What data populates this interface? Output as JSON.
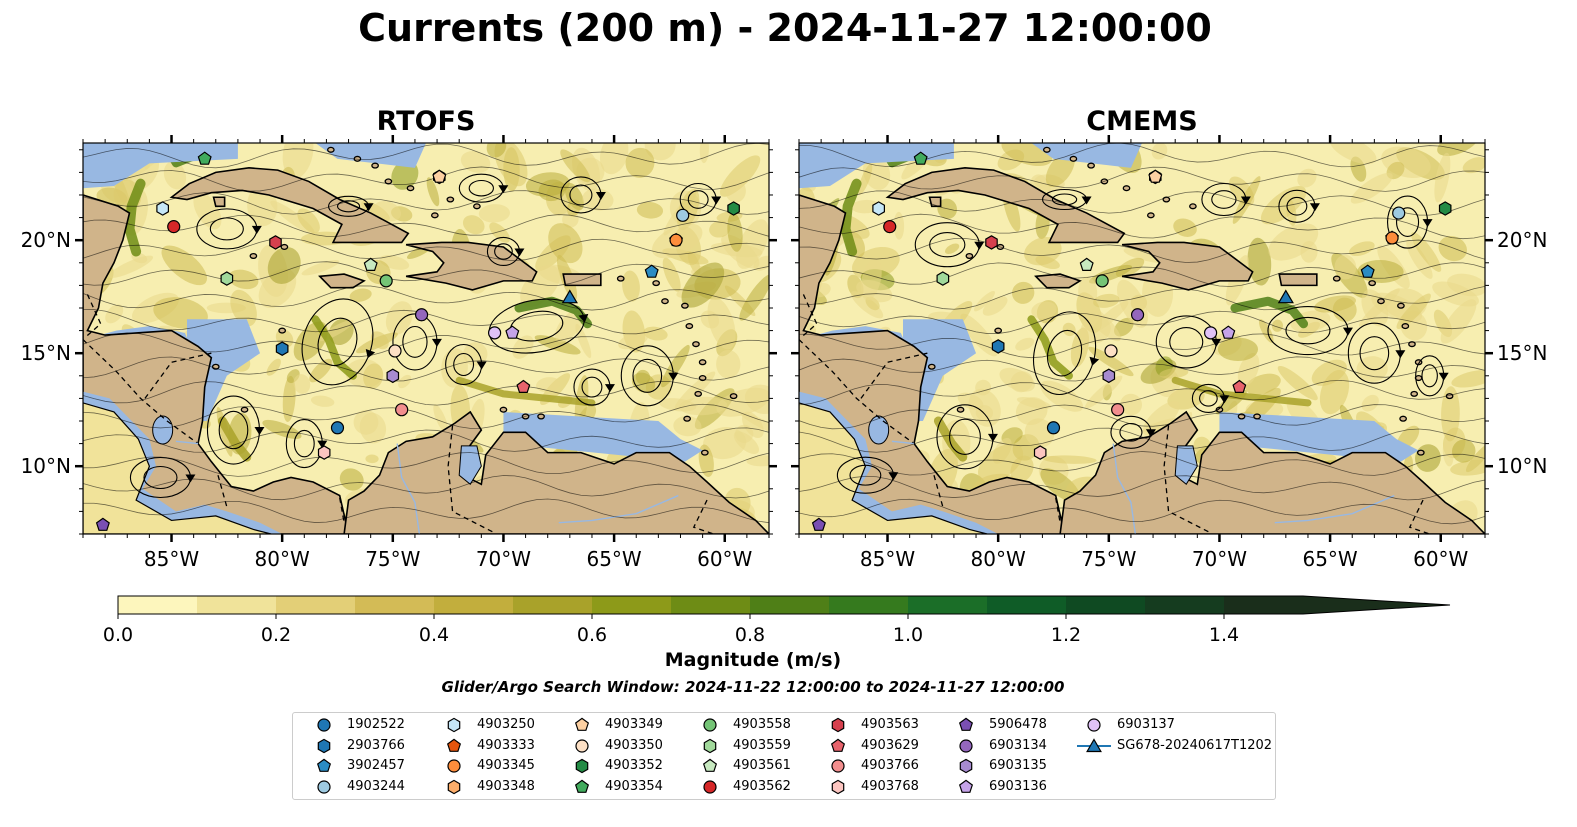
{
  "title": "Currents (200 m) - 2024-11-27 12:00:00",
  "chart_data": {
    "type": "heatmap",
    "panels": [
      {
        "name": "RTOFS"
      },
      {
        "name": "CMEMS"
      }
    ],
    "x_ticks": [
      "85°W",
      "80°W",
      "75°W",
      "70°W",
      "65°W",
      "60°W"
    ],
    "x_values": [
      -85,
      -80,
      -75,
      -70,
      -65,
      -60
    ],
    "y_ticks": [
      "20°N",
      "15°N",
      "10°N"
    ],
    "y_values": [
      20,
      15,
      10
    ],
    "xlim": [
      -89,
      -58
    ],
    "ylim": [
      7,
      24.3
    ],
    "colorbar": {
      "label": "Magnitude (m/s)",
      "ticks": [
        "0.0",
        "0.2",
        "0.4",
        "0.6",
        "0.8",
        "1.0",
        "1.2",
        "1.4"
      ],
      "tick_values": [
        0,
        0.2,
        0.4,
        0.6,
        0.8,
        1.0,
        1.2,
        1.4
      ],
      "min": 0,
      "max": 1.5,
      "colors": [
        "#fdf6bd",
        "#f0e39a",
        "#e3cf77",
        "#d3bb56",
        "#c2ae3d",
        "#a9a22a",
        "#8d9a19",
        "#6e8c15",
        "#4f7f17",
        "#357a1e",
        "#1b6e28",
        "#0f5c27",
        "#0f4a22",
        "#153c1f",
        "#1a2e1b"
      ]
    },
    "subtitle": "Glider/Argo Search Window: 2024-11-22 12:00:00 to 2024-11-27 12:00:00",
    "floats": [
      {
        "id": "1902522",
        "shape": "circle",
        "color": "#1f77b4",
        "rtofs": [
          -77.5,
          11.7
        ],
        "cmems": [
          -77.5,
          11.7
        ]
      },
      {
        "id": "2903766",
        "shape": "hexagon",
        "color": "#1f77b4",
        "rtofs": [
          -80.0,
          15.2
        ],
        "cmems": [
          -80.0,
          15.3
        ]
      },
      {
        "id": "3902457",
        "shape": "pentagon",
        "color": "#2b8cc4",
        "rtofs": [
          -63.3,
          18.6
        ],
        "cmems": [
          -63.3,
          18.6
        ]
      },
      {
        "id": "4903244",
        "shape": "circle",
        "color": "#9ecae1",
        "rtofs": [
          -61.9,
          21.1
        ],
        "cmems": [
          -61.9,
          21.2
        ]
      },
      {
        "id": "4903250",
        "shape": "hexagon",
        "color": "#c6e7f7",
        "rtofs": [
          -85.4,
          21.4
        ],
        "cmems": [
          -85.4,
          21.4
        ]
      },
      {
        "id": "4903333",
        "shape": "pentagon",
        "color": "#e6550d",
        "rtofs": [
          -62.2,
          20.0
        ],
        "cmems": [
          -62.2,
          20.1
        ]
      },
      {
        "id": "4903345",
        "shape": "circle",
        "color": "#fd8d3c",
        "rtofs": [
          -62.2,
          20.0
        ],
        "cmems": [
          -62.2,
          20.1
        ]
      },
      {
        "id": "4903348",
        "shape": "hexagon",
        "color": "#fdae6b",
        "rtofs": [
          -72.9,
          22.8
        ],
        "cmems": [
          -72.9,
          22.8
        ]
      },
      {
        "id": "4903349",
        "shape": "pentagon",
        "color": "#fdd0a2",
        "rtofs": [
          -72.9,
          22.8
        ],
        "cmems": [
          -72.9,
          22.8
        ]
      },
      {
        "id": "4903350",
        "shape": "circle",
        "color": "#fde0c5",
        "rtofs": [
          -74.9,
          15.1
        ],
        "cmems": [
          -74.9,
          15.1
        ]
      },
      {
        "id": "4903352",
        "shape": "hexagon",
        "color": "#238b45",
        "rtofs": [
          -59.6,
          21.4
        ],
        "cmems": [
          -59.8,
          21.4
        ]
      },
      {
        "id": "4903354",
        "shape": "pentagon",
        "color": "#41ab5d",
        "rtofs": [
          -83.5,
          23.6
        ],
        "cmems": [
          -83.5,
          23.6
        ]
      },
      {
        "id": "4903558",
        "shape": "circle",
        "color": "#74c476",
        "rtofs": [
          -75.3,
          18.2
        ],
        "cmems": [
          -75.3,
          18.2
        ]
      },
      {
        "id": "4903559",
        "shape": "hexagon",
        "color": "#a1d99b",
        "rtofs": [
          -82.5,
          18.3
        ],
        "cmems": [
          -82.5,
          18.3
        ]
      },
      {
        "id": "4903561",
        "shape": "pentagon",
        "color": "#c7e9c0",
        "rtofs": [
          -76.0,
          18.9
        ],
        "cmems": [
          -76.0,
          18.9
        ]
      },
      {
        "id": "4903562",
        "shape": "circle",
        "color": "#d62728",
        "rtofs": [
          -84.9,
          20.6
        ],
        "cmems": [
          -84.9,
          20.6
        ]
      },
      {
        "id": "4903563",
        "shape": "hexagon",
        "color": "#d6404e",
        "rtofs": [
          -80.3,
          19.9
        ],
        "cmems": [
          -80.3,
          19.9
        ]
      },
      {
        "id": "4903629",
        "shape": "pentagon",
        "color": "#e7636c",
        "rtofs": [
          -69.1,
          13.5
        ],
        "cmems": [
          -69.1,
          13.5
        ]
      },
      {
        "id": "4903766",
        "shape": "circle",
        "color": "#f28e8e",
        "rtofs": [
          -74.6,
          12.5
        ],
        "cmems": [
          -74.6,
          12.5
        ]
      },
      {
        "id": "4903768",
        "shape": "hexagon",
        "color": "#fcc5c0",
        "rtofs": [
          -78.1,
          10.6
        ],
        "cmems": [
          -78.1,
          10.6
        ]
      },
      {
        "id": "5906478",
        "shape": "pentagon",
        "color": "#7a4fb3",
        "rtofs": [
          -88.1,
          7.4
        ],
        "cmems": [
          -88.1,
          7.4
        ]
      },
      {
        "id": "6903134",
        "shape": "circle",
        "color": "#9467bd",
        "rtofs": [
          -73.7,
          16.7
        ],
        "cmems": [
          -73.7,
          16.7
        ]
      },
      {
        "id": "6903135",
        "shape": "hexagon",
        "color": "#a78bd0",
        "rtofs": [
          -75.0,
          14.0
        ],
        "cmems": [
          -75.0,
          14.0
        ]
      },
      {
        "id": "6903136",
        "shape": "pentagon",
        "color": "#c5a3e8",
        "rtofs": [
          -69.6,
          15.9
        ],
        "cmems": [
          -69.6,
          15.9
        ]
      },
      {
        "id": "6903137",
        "shape": "circle",
        "color": "#e0c2f7",
        "rtofs": [
          -70.4,
          15.9
        ],
        "cmems": [
          -70.4,
          15.9
        ]
      },
      {
        "id": "SG678-20240617T1202",
        "shape": "triangle",
        "color": "#1f77b4",
        "rtofs": [
          -67.0,
          17.5
        ],
        "cmems": [
          -67.0,
          17.5
        ]
      }
    ]
  }
}
